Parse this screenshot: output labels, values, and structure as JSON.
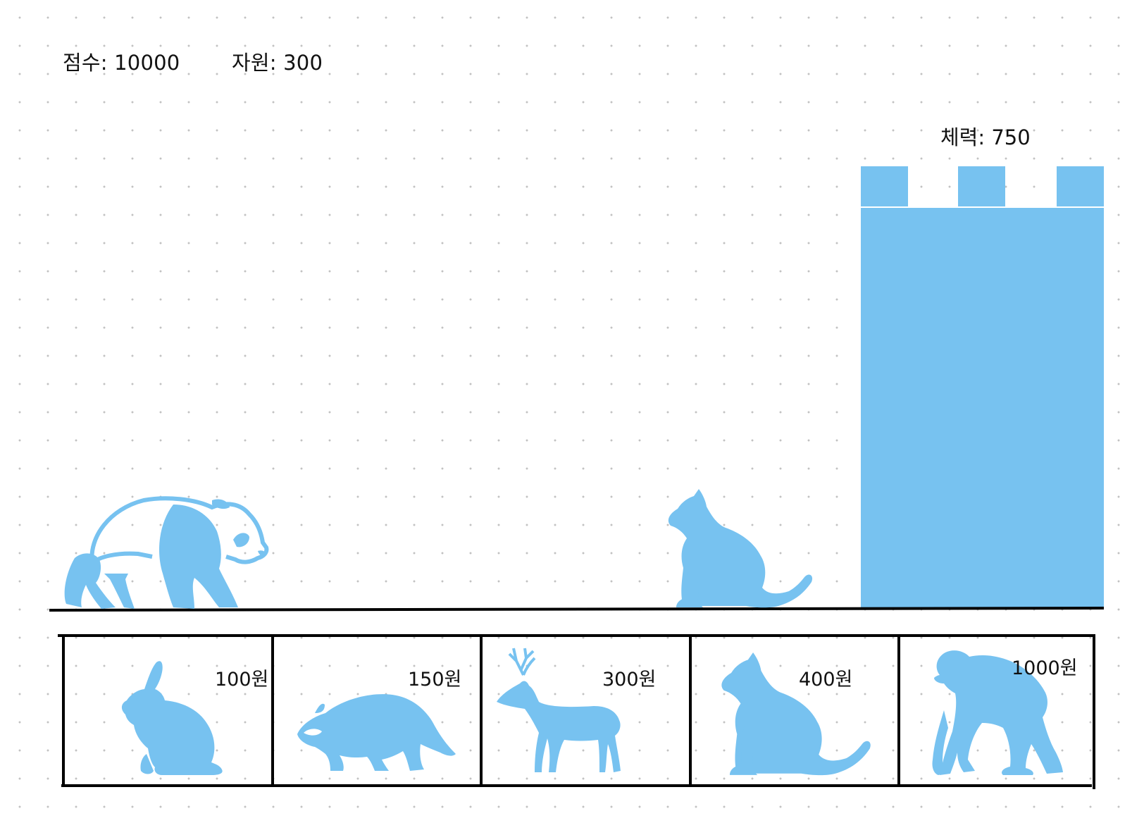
{
  "colors": {
    "accent": "#77c2f0",
    "ink": "#000000",
    "dot": "#c2c2c2"
  },
  "hud": {
    "score": "점수: 10000",
    "resource": "자원: 300"
  },
  "castle": {
    "hp_label": "체력: 750"
  },
  "field": {
    "units": [
      {
        "icon": "panda-icon"
      },
      {
        "icon": "cat-icon"
      }
    ]
  },
  "shop": {
    "slots": [
      {
        "icon": "rabbit-icon",
        "price": "100원"
      },
      {
        "icon": "raccoon-icon",
        "price": "150원"
      },
      {
        "icon": "deer-icon",
        "price": "300원"
      },
      {
        "icon": "cat-icon",
        "price": "400원"
      },
      {
        "icon": "chimpanzee-icon",
        "price": "1000원"
      }
    ]
  }
}
